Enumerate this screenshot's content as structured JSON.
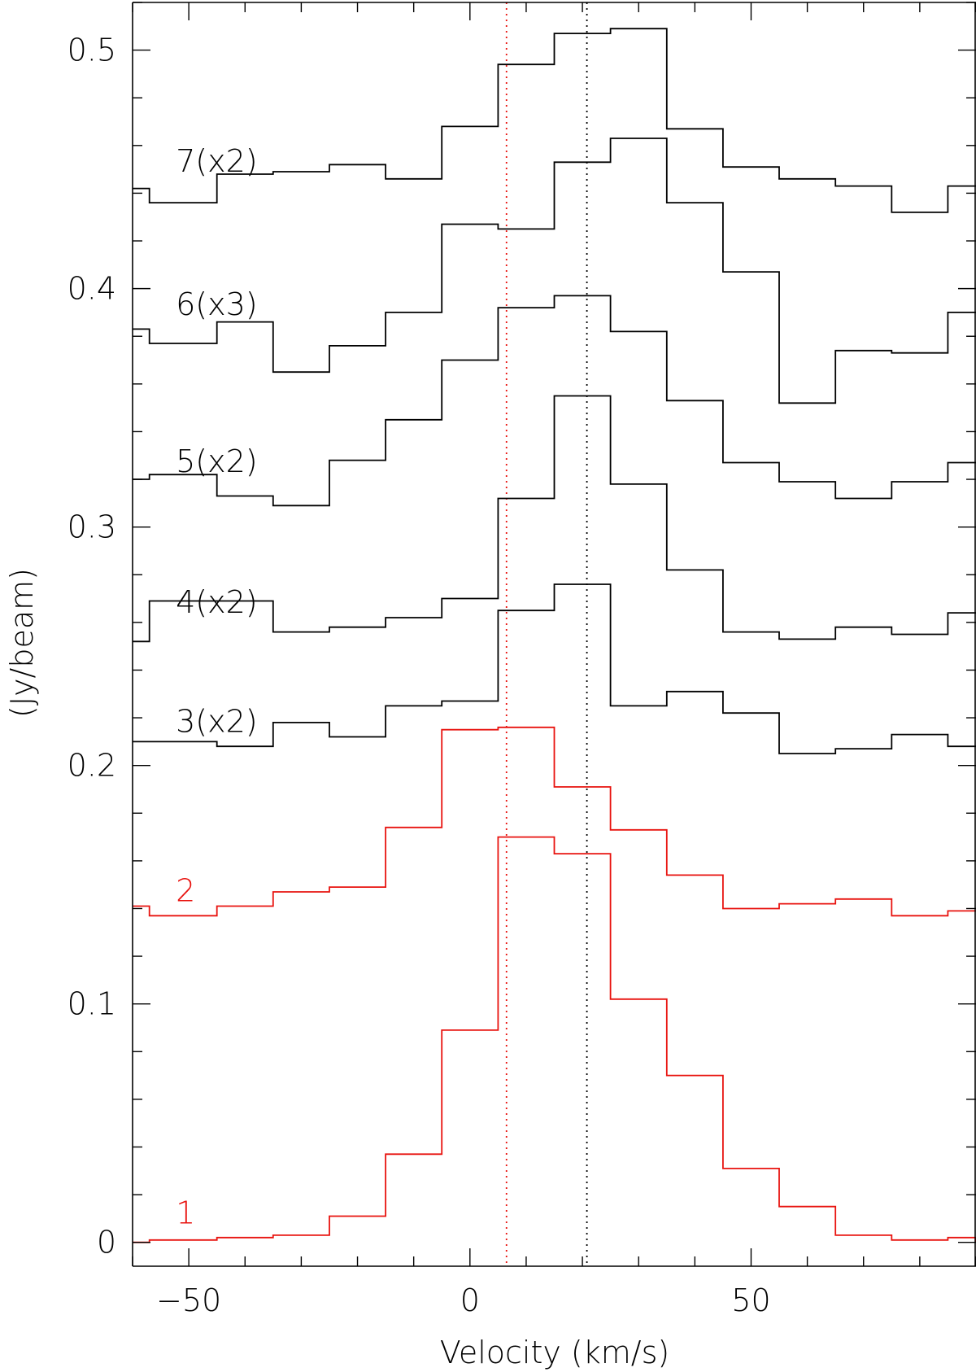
{
  "chart_data": {
    "type": "line",
    "step": true,
    "xlabel": "Velocity (km/s)",
    "ylabel": "(Jy/beam)",
    "xlim": [
      -60,
      90
    ],
    "ylim": [
      -0.01,
      0.52
    ],
    "x_ticks": [
      -50,
      0,
      50
    ],
    "x_tick_labels": [
      "−50",
      "0",
      "50"
    ],
    "y_ticks": [
      0,
      0.1,
      0.2,
      0.3,
      0.4,
      0.5
    ],
    "y_tick_labels": [
      "0",
      "0.1",
      "0.2",
      "0.3",
      "0.4",
      "0.5"
    ],
    "grid": false,
    "bin_edges": [
      -60,
      -57,
      -45,
      -35,
      -25,
      -15,
      -5,
      5,
      15,
      25,
      35,
      45,
      55,
      65,
      75,
      85,
      90
    ],
    "vlines": [
      {
        "x": 6.5,
        "color": "#e8130f",
        "style": "dotted"
      },
      {
        "x": 20.8,
        "color": "#000000",
        "style": "dotted"
      }
    ],
    "series": [
      {
        "name": "1",
        "color": "#e8130f",
        "label_x": -50,
        "label_y": 0.008,
        "values": [
          0.0,
          0.001,
          0.002,
          0.003,
          0.011,
          0.037,
          0.089,
          0.17,
          0.163,
          0.102,
          0.07,
          0.031,
          0.015,
          0.003,
          0.001,
          0.002,
          0.0
        ]
      },
      {
        "name": "2",
        "color": "#e8130f",
        "label_x": -50,
        "label_y": 0.143,
        "values": [
          0.141,
          0.137,
          0.141,
          0.147,
          0.149,
          0.174,
          0.215,
          0.216,
          0.191,
          0.173,
          0.154,
          0.14,
          0.142,
          0.144,
          0.137,
          0.139,
          0.139
        ]
      },
      {
        "name": "3(x2)",
        "color": "#000000",
        "label_x": -50,
        "label_y": 0.214,
        "values": [
          0.21,
          0.21,
          0.208,
          0.218,
          0.212,
          0.225,
          0.227,
          0.265,
          0.276,
          0.225,
          0.231,
          0.222,
          0.205,
          0.207,
          0.213,
          0.208,
          0.208
        ]
      },
      {
        "name": "4(x2)",
        "color": "#000000",
        "label_x": -50,
        "label_y": 0.264,
        "values": [
          0.252,
          0.269,
          0.269,
          0.256,
          0.258,
          0.262,
          0.27,
          0.312,
          0.355,
          0.318,
          0.282,
          0.256,
          0.253,
          0.258,
          0.255,
          0.264,
          0.264
        ]
      },
      {
        "name": "5(x2)",
        "color": "#000000",
        "label_x": -50,
        "label_y": 0.323,
        "values": [
          0.32,
          0.322,
          0.313,
          0.309,
          0.328,
          0.345,
          0.37,
          0.392,
          0.397,
          0.382,
          0.353,
          0.327,
          0.319,
          0.312,
          0.319,
          0.327,
          0.327
        ]
      },
      {
        "name": "6(x3)",
        "color": "#000000",
        "label_x": -50,
        "label_y": 0.389,
        "values": [
          0.383,
          0.377,
          0.386,
          0.365,
          0.376,
          0.39,
          0.427,
          0.425,
          0.453,
          0.463,
          0.436,
          0.407,
          0.352,
          0.374,
          0.373,
          0.39,
          0.39
        ]
      },
      {
        "name": "7(x2)",
        "color": "#000000",
        "label_x": -50,
        "label_y": 0.449,
        "values": [
          0.442,
          0.436,
          0.448,
          0.449,
          0.452,
          0.446,
          0.468,
          0.494,
          0.507,
          0.509,
          0.467,
          0.451,
          0.446,
          0.443,
          0.432,
          0.443,
          0.443
        ]
      }
    ]
  }
}
